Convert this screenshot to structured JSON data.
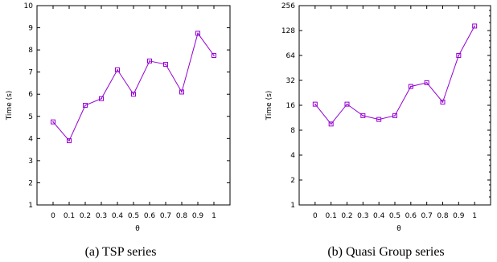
{
  "chart_data": [
    {
      "type": "line",
      "caption": "(a) TSP series",
      "xlabel": "θ",
      "ylabel": "Time (s)",
      "x": [
        0,
        0.1,
        0.2,
        0.3,
        0.4,
        0.5,
        0.6,
        0.7,
        0.8,
        0.9,
        1
      ],
      "x_ticks": [
        "0",
        "0.1",
        "0.2",
        "0.3",
        "0.4",
        "0.5",
        "0.6",
        "0.7",
        "0.8",
        "0.9",
        "1"
      ],
      "xlim": [
        -0.1,
        1.1
      ],
      "ylim": [
        1,
        10
      ],
      "y_scale": "linear",
      "y_ticks": [
        "1",
        "2",
        "3",
        "4",
        "5",
        "6",
        "7",
        "8",
        "9",
        "10"
      ],
      "series": [
        {
          "values": [
            4.75,
            3.9,
            5.5,
            5.8,
            7.1,
            6.0,
            7.5,
            7.35,
            6.1,
            8.75,
            7.75
          ]
        }
      ],
      "color": "#9400d3",
      "marker": "square-with-dot"
    },
    {
      "type": "line",
      "caption": "(b) Quasi Group series",
      "xlabel": "θ",
      "ylabel": "Time (s)",
      "x": [
        0,
        0.1,
        0.2,
        0.3,
        0.4,
        0.5,
        0.6,
        0.7,
        0.8,
        0.9,
        1
      ],
      "x_ticks": [
        "0",
        "0.1",
        "0.2",
        "0.3",
        "0.4",
        "0.5",
        "0.6",
        "0.7",
        "0.8",
        "0.9",
        "1"
      ],
      "xlim": [
        -0.1,
        1.1
      ],
      "ylim": [
        1,
        256
      ],
      "y_scale": "log2",
      "y_ticks": [
        "1",
        "2",
        "4",
        "8",
        "16",
        "32",
        "64",
        "128",
        "256"
      ],
      "series": [
        {
          "values": [
            16.5,
            9.5,
            16.5,
            12,
            10.8,
            12,
            27,
            30,
            17.5,
            64,
            145
          ]
        }
      ],
      "color": "#9400d3",
      "marker": "square-with-dot"
    }
  ]
}
